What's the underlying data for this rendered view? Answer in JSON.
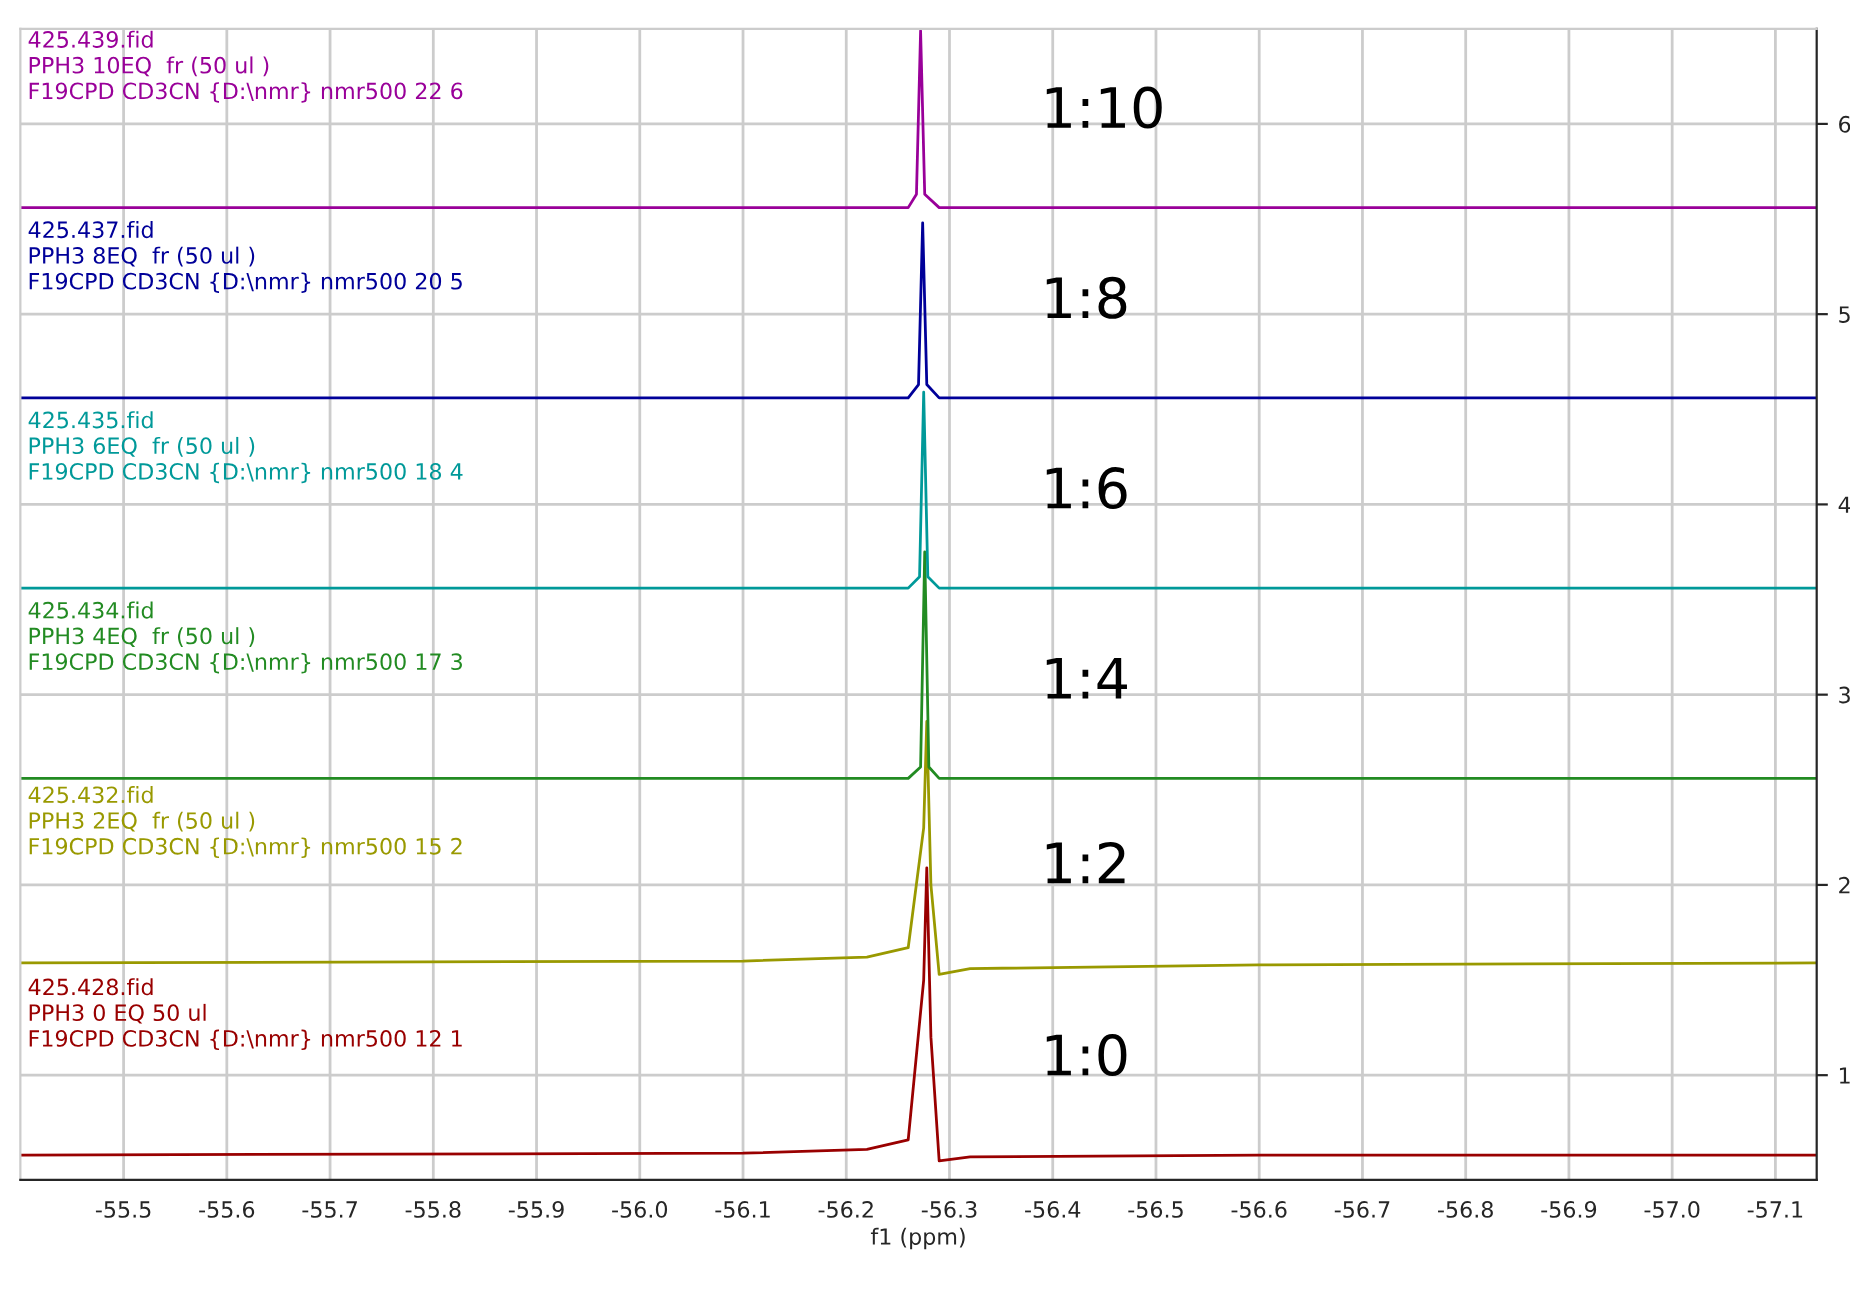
{
  "chart_data": {
    "type": "line",
    "xlabel": "f1 (ppm)",
    "xlim": [
      -55.4,
      -57.14
    ],
    "xticks": [
      -55.5,
      -55.6,
      -55.7,
      -55.8,
      -55.9,
      {
        "value": -56.0,
        "label": "-56.0"
      },
      -56.1,
      -56.2,
      -56.3,
      -56.4,
      -56.5,
      -56.6,
      -56.7,
      -56.8,
      -56.9,
      {
        "value": -57.0,
        "label": "-57.0"
      },
      -57.1
    ],
    "ylim": [
      0.45,
      6.5
    ],
    "yticks": [
      1,
      2,
      3,
      4,
      5,
      6
    ],
    "tick_labels": "xy",
    "grid": true,
    "legend": false,
    "marker": "none",
    "line_style": "solid",
    "series": [
      {
        "name": "425.428.fid\nPPH3 0 EQ 50 ul\nF19CPD CD3CN {D:\\nmr} nmr500 12 1",
        "color": "#990000",
        "x": [
          -55.4,
          -56.1,
          -56.22,
          -56.26,
          -56.275,
          -56.278,
          -56.282,
          -56.29,
          -56.32,
          -56.6,
          -57.14
        ],
        "values": [
          0.58,
          0.59,
          0.61,
          0.66,
          1.5,
          2.09,
          1.2,
          0.55,
          0.57,
          0.58,
          0.58
        ]
      },
      {
        "name": "425.432.fid\nPPH3 2EQ  fr (50 ul )\nF19CPD CD3CN {D:\\nmr} nmr500 15 2",
        "color": "#999900",
        "x": [
          -55.4,
          -56.1,
          -56.22,
          -56.26,
          -56.275,
          -56.278,
          -56.282,
          -56.29,
          -56.32,
          -56.6,
          -57.14
        ],
        "values": [
          1.59,
          1.6,
          1.62,
          1.67,
          2.3,
          2.86,
          2.0,
          1.53,
          1.56,
          1.58,
          1.59
        ]
      },
      {
        "name": "425.434.fid\nPPH3 4EQ  fr (50 ul )\nF19CPD CD3CN {D:\\nmr} nmr500 17 3",
        "color": "#228b22",
        "x": [
          -55.4,
          -56.26,
          -56.272,
          -56.276,
          -56.28,
          -56.29,
          -57.14
        ],
        "values": [
          2.56,
          2.56,
          2.62,
          3.75,
          2.62,
          2.56,
          2.56
        ]
      },
      {
        "name": "425.435.fid\nPPH3 6EQ  fr (50 ul )\nF19CPD CD3CN {D:\\nmr} nmr500 18 4",
        "color": "#009999",
        "x": [
          -55.4,
          -56.26,
          -56.271,
          -56.275,
          -56.279,
          -56.29,
          -57.14
        ],
        "values": [
          3.56,
          3.56,
          3.62,
          4.59,
          3.62,
          3.56,
          3.56
        ]
      },
      {
        "name": "425.437.fid\nPPH3 8EQ  fr (50 ul )\nF19CPD CD3CN {D:\\nmr} nmr500 20 5",
        "color": "#000099",
        "x": [
          -55.4,
          -56.26,
          -56.27,
          -56.274,
          -56.278,
          -56.29,
          -57.14
        ],
        "values": [
          4.56,
          4.56,
          4.63,
          5.48,
          4.63,
          4.56,
          4.56
        ]
      },
      {
        "name": "425.439.fid\nPPH3 10EQ  fr (50 ul )\nF19CPD CD3CN {D:\\nmr} nmr500 22 6",
        "color": "#990099",
        "x": [
          -55.4,
          -56.26,
          -56.268,
          -56.272,
          -56.276,
          -56.29,
          -57.14
        ],
        "values": [
          5.56,
          5.56,
          5.63,
          6.49,
          5.63,
          5.56,
          5.56
        ]
      }
    ],
    "annotations": [
      "1:0",
      "1:2",
      "1:4",
      "1:6",
      "1:8",
      "1:10"
    ]
  }
}
